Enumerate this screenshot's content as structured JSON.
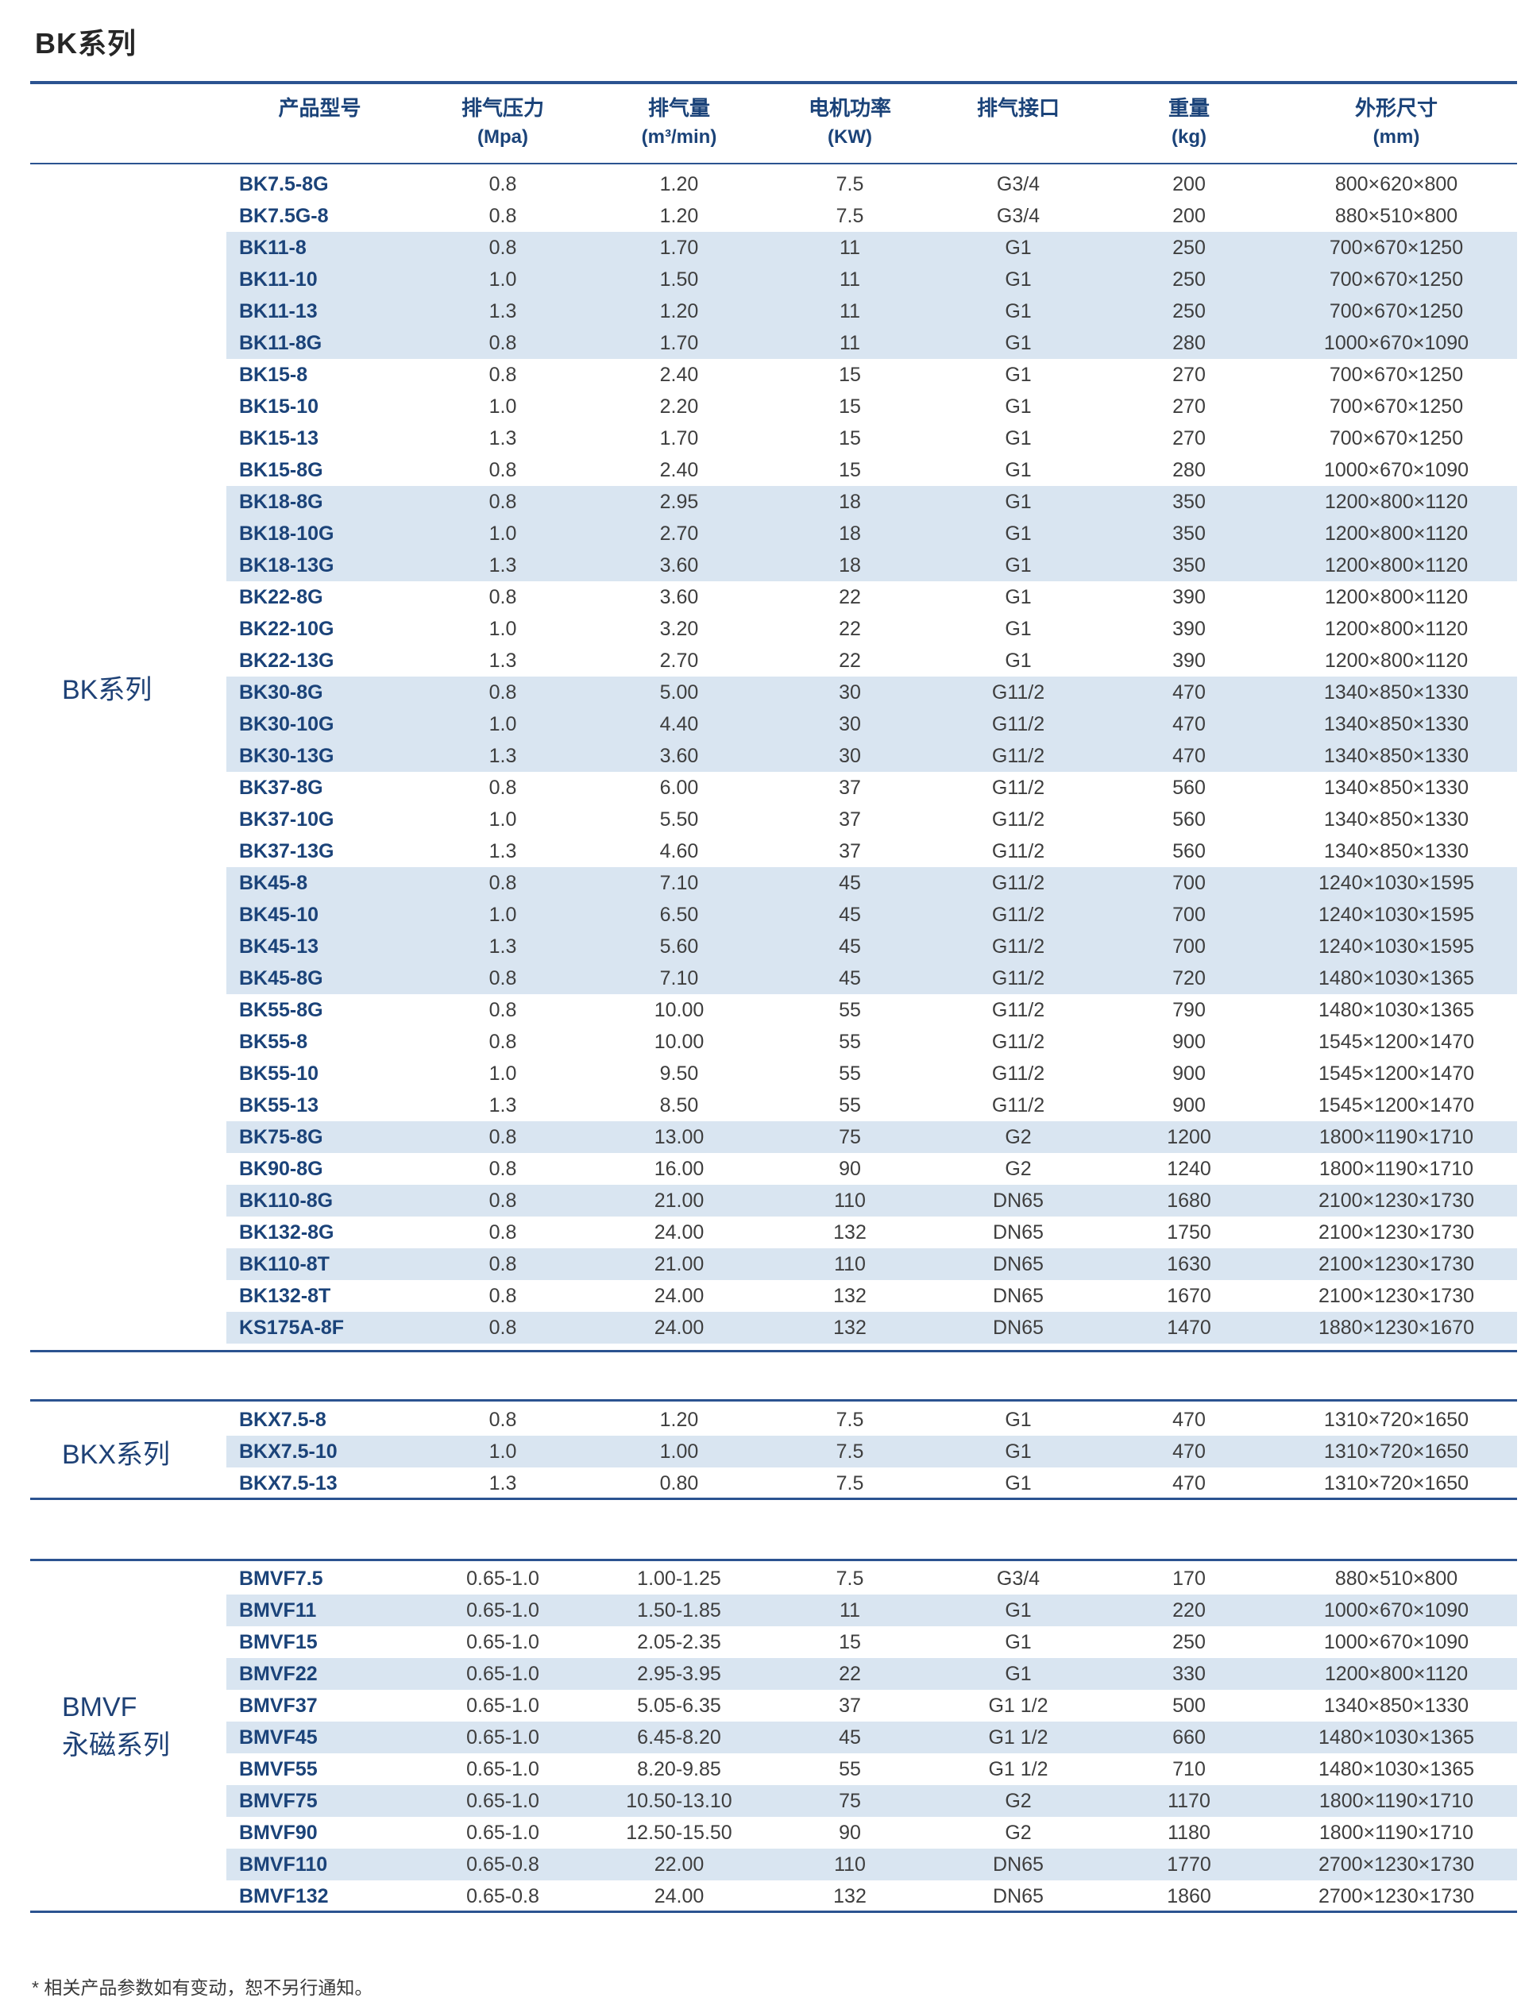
{
  "page": {
    "title": "BK系列",
    "footnote": "* 相关产品参数如有变动，恕不另行通知。"
  },
  "colors": {
    "accent_navy": "#1b4379",
    "rule_navy": "#2b5390",
    "row_band_blue": "#d9e5f1",
    "value_text": "#3e3e3e",
    "title_text": "#262626"
  },
  "table": {
    "columns": [
      {
        "label": "产品型号",
        "unit": ""
      },
      {
        "label": "排气压力",
        "unit": "(Mpa)"
      },
      {
        "label": "排气量",
        "unit": "(m³/min)"
      },
      {
        "label": "电机功率",
        "unit": "(KW)"
      },
      {
        "label": "排气接口",
        "unit": ""
      },
      {
        "label": "重量",
        "unit": "(kg)"
      },
      {
        "label": "外形尺寸",
        "unit": "(mm)"
      }
    ],
    "sections": [
      {
        "label_lines": [
          "BK系列"
        ],
        "rows": [
          {
            "cells": [
              "BK7.5-8G",
              "0.8",
              "1.20",
              "7.5",
              "G3/4",
              "200",
              "800×620×800"
            ],
            "shaded": false
          },
          {
            "cells": [
              "BK7.5G-8",
              "0.8",
              "1.20",
              "7.5",
              "G3/4",
              "200",
              "880×510×800"
            ],
            "shaded": false
          },
          {
            "cells": [
              "BK11-8",
              "0.8",
              "1.70",
              "11",
              "G1",
              "250",
              "700×670×1250"
            ],
            "shaded": true
          },
          {
            "cells": [
              "BK11-10",
              "1.0",
              "1.50",
              "11",
              "G1",
              "250",
              "700×670×1250"
            ],
            "shaded": true
          },
          {
            "cells": [
              "BK11-13",
              "1.3",
              "1.20",
              "11",
              "G1",
              "250",
              "700×670×1250"
            ],
            "shaded": true
          },
          {
            "cells": [
              "BK11-8G",
              "0.8",
              "1.70",
              "11",
              "G1",
              "280",
              "1000×670×1090"
            ],
            "shaded": true
          },
          {
            "cells": [
              "BK15-8",
              "0.8",
              "2.40",
              "15",
              "G1",
              "270",
              "700×670×1250"
            ],
            "shaded": false
          },
          {
            "cells": [
              "BK15-10",
              "1.0",
              "2.20",
              "15",
              "G1",
              "270",
              "700×670×1250"
            ],
            "shaded": false
          },
          {
            "cells": [
              "BK15-13",
              "1.3",
              "1.70",
              "15",
              "G1",
              "270",
              "700×670×1250"
            ],
            "shaded": false
          },
          {
            "cells": [
              "BK15-8G",
              "0.8",
              "2.40",
              "15",
              "G1",
              "280",
              "1000×670×1090"
            ],
            "shaded": false
          },
          {
            "cells": [
              "BK18-8G",
              "0.8",
              "2.95",
              "18",
              "G1",
              "350",
              "1200×800×1120"
            ],
            "shaded": true
          },
          {
            "cells": [
              "BK18-10G",
              "1.0",
              "2.70",
              "18",
              "G1",
              "350",
              "1200×800×1120"
            ],
            "shaded": true
          },
          {
            "cells": [
              "BK18-13G",
              "1.3",
              "3.60",
              "18",
              "G1",
              "350",
              "1200×800×1120"
            ],
            "shaded": true
          },
          {
            "cells": [
              "BK22-8G",
              "0.8",
              "3.60",
              "22",
              "G1",
              "390",
              "1200×800×1120"
            ],
            "shaded": false
          },
          {
            "cells": [
              "BK22-10G",
              "1.0",
              "3.20",
              "22",
              "G1",
              "390",
              "1200×800×1120"
            ],
            "shaded": false
          },
          {
            "cells": [
              "BK22-13G",
              "1.3",
              "2.70",
              "22",
              "G1",
              "390",
              "1200×800×1120"
            ],
            "shaded": false
          },
          {
            "cells": [
              "BK30-8G",
              "0.8",
              "5.00",
              "30",
              "G11/2",
              "470",
              "1340×850×1330"
            ],
            "shaded": true
          },
          {
            "cells": [
              "BK30-10G",
              "1.0",
              "4.40",
              "30",
              "G11/2",
              "470",
              "1340×850×1330"
            ],
            "shaded": true
          },
          {
            "cells": [
              "BK30-13G",
              "1.3",
              "3.60",
              "30",
              "G11/2",
              "470",
              "1340×850×1330"
            ],
            "shaded": true
          },
          {
            "cells": [
              "BK37-8G",
              "0.8",
              "6.00",
              "37",
              "G11/2",
              "560",
              "1340×850×1330"
            ],
            "shaded": false
          },
          {
            "cells": [
              "BK37-10G",
              "1.0",
              "5.50",
              "37",
              "G11/2",
              "560",
              "1340×850×1330"
            ],
            "shaded": false
          },
          {
            "cells": [
              "BK37-13G",
              "1.3",
              "4.60",
              "37",
              "G11/2",
              "560",
              "1340×850×1330"
            ],
            "shaded": false
          },
          {
            "cells": [
              "BK45-8",
              "0.8",
              "7.10",
              "45",
              "G11/2",
              "700",
              "1240×1030×1595"
            ],
            "shaded": true
          },
          {
            "cells": [
              "BK45-10",
              "1.0",
              "6.50",
              "45",
              "G11/2",
              "700",
              "1240×1030×1595"
            ],
            "shaded": true
          },
          {
            "cells": [
              "BK45-13",
              "1.3",
              "5.60",
              "45",
              "G11/2",
              "700",
              "1240×1030×1595"
            ],
            "shaded": true
          },
          {
            "cells": [
              "BK45-8G",
              "0.8",
              "7.10",
              "45",
              "G11/2",
              "720",
              "1480×1030×1365"
            ],
            "shaded": true
          },
          {
            "cells": [
              "BK55-8G",
              "0.8",
              "10.00",
              "55",
              "G11/2",
              "790",
              "1480×1030×1365"
            ],
            "shaded": false
          },
          {
            "cells": [
              "BK55-8",
              "0.8",
              "10.00",
              "55",
              "G11/2",
              "900",
              "1545×1200×1470"
            ],
            "shaded": false
          },
          {
            "cells": [
              "BK55-10",
              "1.0",
              "9.50",
              "55",
              "G11/2",
              "900",
              "1545×1200×1470"
            ],
            "shaded": false
          },
          {
            "cells": [
              "BK55-13",
              "1.3",
              "8.50",
              "55",
              "G11/2",
              "900",
              "1545×1200×1470"
            ],
            "shaded": false
          },
          {
            "cells": [
              "BK75-8G",
              "0.8",
              "13.00",
              "75",
              "G2",
              "1200",
              "1800×1190×1710"
            ],
            "shaded": true
          },
          {
            "cells": [
              "BK90-8G",
              "0.8",
              "16.00",
              "90",
              "G2",
              "1240",
              "1800×1190×1710"
            ],
            "shaded": false
          },
          {
            "cells": [
              "BK110-8G",
              "0.8",
              "21.00",
              "110",
              "DN65",
              "1680",
              "2100×1230×1730"
            ],
            "shaded": true
          },
          {
            "cells": [
              "BK132-8G",
              "0.8",
              "24.00",
              "132",
              "DN65",
              "1750",
              "2100×1230×1730"
            ],
            "shaded": false
          },
          {
            "cells": [
              "BK110-8T",
              "0.8",
              "21.00",
              "110",
              "DN65",
              "1630",
              "2100×1230×1730"
            ],
            "shaded": true
          },
          {
            "cells": [
              "BK132-8T",
              "0.8",
              "24.00",
              "132",
              "DN65",
              "1670",
              "2100×1230×1730"
            ],
            "shaded": false
          },
          {
            "cells": [
              "KS175A-8F",
              "0.8",
              "24.00",
              "132",
              "DN65",
              "1470",
              "1880×1230×1670"
            ],
            "shaded": true
          }
        ]
      },
      {
        "label_lines": [
          "BKX系列"
        ],
        "rows": [
          {
            "cells": [
              "BKX7.5-8",
              "0.8",
              "1.20",
              "7.5",
              "G1",
              "470",
              "1310×720×1650"
            ],
            "shaded": false
          },
          {
            "cells": [
              "BKX7.5-10",
              "1.0",
              "1.00",
              "7.5",
              "G1",
              "470",
              "1310×720×1650"
            ],
            "shaded": true
          },
          {
            "cells": [
              "BKX7.5-13",
              "1.3",
              "0.80",
              "7.5",
              "G1",
              "470",
              "1310×720×1650"
            ],
            "shaded": false
          }
        ]
      },
      {
        "label_lines": [
          "BMVF",
          "永磁系列"
        ],
        "rows": [
          {
            "cells": [
              "BMVF7.5",
              "0.65-1.0",
              "1.00-1.25",
              "7.5",
              "G3/4",
              "170",
              "880×510×800"
            ],
            "shaded": false
          },
          {
            "cells": [
              "BMVF11",
              "0.65-1.0",
              "1.50-1.85",
              "11",
              "G1",
              "220",
              "1000×670×1090"
            ],
            "shaded": true
          },
          {
            "cells": [
              "BMVF15",
              "0.65-1.0",
              "2.05-2.35",
              "15",
              "G1",
              "250",
              "1000×670×1090"
            ],
            "shaded": false
          },
          {
            "cells": [
              "BMVF22",
              "0.65-1.0",
              "2.95-3.95",
              "22",
              "G1",
              "330",
              "1200×800×1120"
            ],
            "shaded": true
          },
          {
            "cells": [
              "BMVF37",
              "0.65-1.0",
              "5.05-6.35",
              "37",
              "G1 1/2",
              "500",
              "1340×850×1330"
            ],
            "shaded": false
          },
          {
            "cells": [
              "BMVF45",
              "0.65-1.0",
              "6.45-8.20",
              "45",
              "G1 1/2",
              "660",
              "1480×1030×1365"
            ],
            "shaded": true
          },
          {
            "cells": [
              "BMVF55",
              "0.65-1.0",
              "8.20-9.85",
              "55",
              "G1 1/2",
              "710",
              "1480×1030×1365"
            ],
            "shaded": false
          },
          {
            "cells": [
              "BMVF75",
              "0.65-1.0",
              "10.50-13.10",
              "75",
              "G2",
              "1170",
              "1800×1190×1710"
            ],
            "shaded": true
          },
          {
            "cells": [
              "BMVF90",
              "0.65-1.0",
              "12.50-15.50",
              "90",
              "G2",
              "1180",
              "1800×1190×1710"
            ],
            "shaded": false
          },
          {
            "cells": [
              "BMVF110",
              "0.65-0.8",
              "22.00",
              "110",
              "DN65",
              "1770",
              "2700×1230×1730"
            ],
            "shaded": true
          },
          {
            "cells": [
              "BMVF132",
              "0.65-0.8",
              "24.00",
              "132",
              "DN65",
              "1860",
              "2700×1230×1730"
            ],
            "shaded": false
          }
        ]
      }
    ]
  }
}
